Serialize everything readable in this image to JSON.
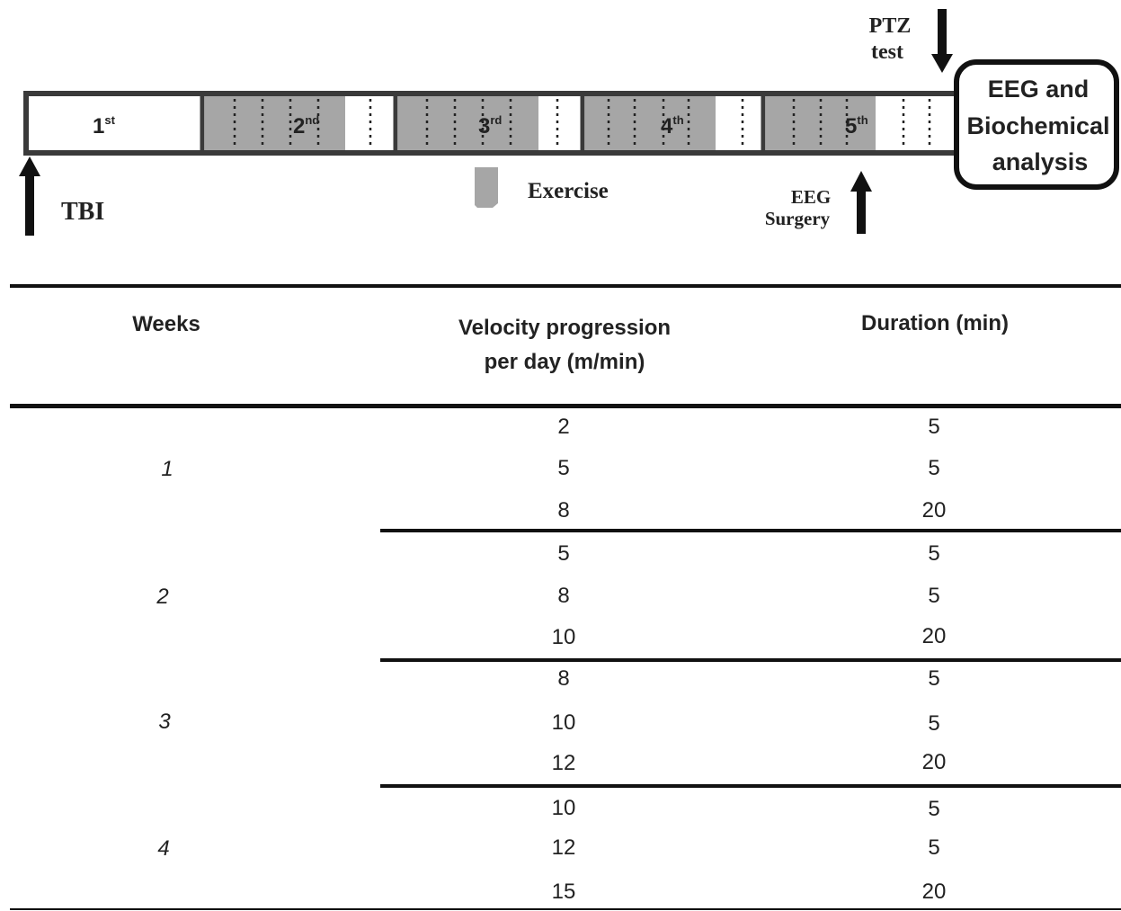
{
  "timeline": {
    "weeks": [
      {
        "num": "1",
        "sup": "st"
      },
      {
        "num": "2",
        "sup": "nd"
      },
      {
        "num": "3",
        "sup": "rd"
      },
      {
        "num": "4",
        "sup": "th"
      },
      {
        "num": "5",
        "sup": "th"
      }
    ],
    "ptz_line1": "PTZ",
    "ptz_line2": "test",
    "final_box": [
      "EEG and",
      "Biochemical",
      "analysis"
    ],
    "tbi_label": "TBI",
    "exercise_label": "Exercise",
    "eeg_line1": "EEG",
    "eeg_line2": "Surgery",
    "colors": {
      "exercise_fill": "#a6a6a6",
      "outline": "#3a3a3a",
      "arrow": "#111111"
    }
  },
  "table": {
    "headers": {
      "weeks": "Weeks",
      "velocity_line1": "Velocity progression",
      "velocity_line2": "per day (m/min)",
      "duration": "Duration (min)"
    },
    "groups": [
      {
        "week": "1",
        "rows": [
          {
            "velocity": "2",
            "duration": "5"
          },
          {
            "velocity": "5",
            "duration": "5"
          },
          {
            "velocity": "8",
            "duration": "20"
          }
        ]
      },
      {
        "week": "2",
        "rows": [
          {
            "velocity": "5",
            "duration": "5"
          },
          {
            "velocity": "8",
            "duration": "5"
          },
          {
            "velocity": "10",
            "duration": "20"
          }
        ]
      },
      {
        "week": "3",
        "rows": [
          {
            "velocity": "8",
            "duration": "5"
          },
          {
            "velocity": "10",
            "duration": "5"
          },
          {
            "velocity": "12",
            "duration": "20"
          }
        ]
      },
      {
        "week": "4",
        "rows": [
          {
            "velocity": "10",
            "duration": "5"
          },
          {
            "velocity": "12",
            "duration": "5"
          },
          {
            "velocity": "15",
            "duration": "20"
          }
        ]
      }
    ]
  }
}
